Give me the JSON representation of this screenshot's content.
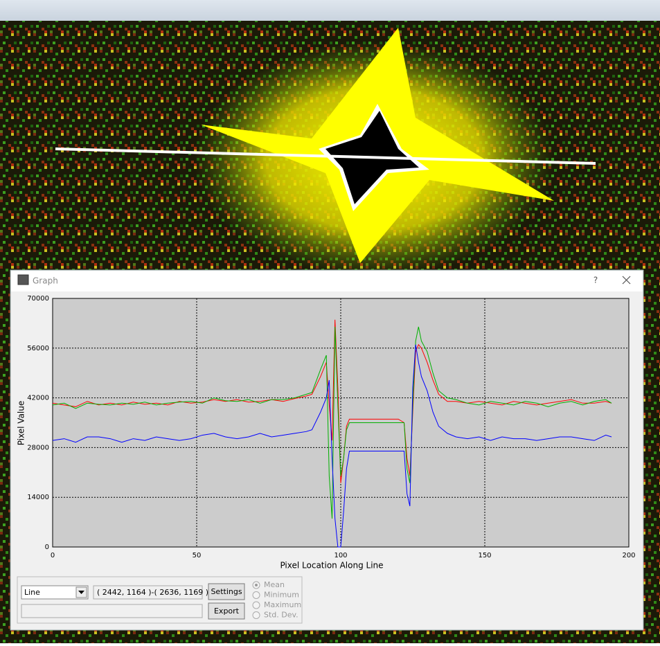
{
  "window": {
    "title": "Graph",
    "help": "?"
  },
  "chart_data": {
    "type": "line",
    "xlabel": "Pixel Location Along Line",
    "ylabel": "Pixel Value",
    "x": [
      0,
      4,
      8,
      12,
      16,
      20,
      24,
      28,
      32,
      36,
      40,
      44,
      48,
      52,
      56,
      60,
      64,
      68,
      72,
      76,
      80,
      84,
      88,
      90,
      93,
      95,
      96,
      97,
      98,
      99,
      100,
      101,
      102,
      103,
      110,
      120,
      122,
      123,
      124,
      125,
      126,
      127,
      128,
      130,
      132,
      134,
      137,
      140,
      144,
      148,
      152,
      156,
      160,
      164,
      168,
      172,
      176,
      180,
      184,
      188,
      192,
      194
    ],
    "series": [
      {
        "color": "#ff0000",
        "values": [
          40500,
          40000,
          39500,
          41000,
          40000,
          40500,
          40000,
          40800,
          40200,
          40500,
          40000,
          41000,
          40500,
          40800,
          41500,
          41000,
          41500,
          40800,
          41000,
          41500,
          41000,
          41800,
          42500,
          43000,
          48000,
          52000,
          40000,
          30000,
          64000,
          45000,
          18000,
          25000,
          34000,
          36000,
          36000,
          36000,
          35000,
          25000,
          20000,
          38000,
          55000,
          57000,
          56000,
          52000,
          47000,
          43000,
          41000,
          41000,
          40500,
          41000,
          40500,
          40000,
          41000,
          40500,
          40000,
          40500,
          41000,
          41500,
          40500,
          40500,
          41000,
          40500
        ]
      },
      {
        "color": "#00b000",
        "values": [
          40000,
          40500,
          39000,
          40500,
          40200,
          40000,
          40500,
          40200,
          40800,
          40000,
          40500,
          40800,
          41000,
          40500,
          42000,
          41200,
          41000,
          41500,
          40500,
          41500,
          41500,
          42000,
          43000,
          43500,
          50000,
          54000,
          20000,
          8000,
          62000,
          40000,
          20000,
          25000,
          33000,
          35000,
          35000,
          35000,
          35000,
          22000,
          18000,
          40000,
          58000,
          62000,
          58000,
          55000,
          49000,
          44000,
          42000,
          41500,
          40500,
          40000,
          41000,
          40500,
          40000,
          41000,
          40500,
          39500,
          40500,
          41000,
          40000,
          41000,
          41500,
          40500
        ]
      },
      {
        "color": "#0000ff",
        "values": [
          30000,
          30500,
          29500,
          31000,
          31000,
          30500,
          29500,
          30500,
          30000,
          31000,
          30500,
          30000,
          30500,
          31500,
          32000,
          31000,
          30500,
          31000,
          32000,
          31000,
          31500,
          32000,
          32500,
          33000,
          38000,
          42000,
          47000,
          25000,
          8000,
          0,
          0,
          10000,
          22000,
          27000,
          27000,
          27000,
          27000,
          15000,
          11500,
          45000,
          57000,
          52000,
          48000,
          44000,
          38000,
          34000,
          32000,
          31000,
          30500,
          31000,
          30000,
          31000,
          30500,
          30500,
          30000,
          30500,
          31000,
          31000,
          30500,
          30000,
          31500,
          31000
        ]
      }
    ],
    "xlim": [
      0,
      200
    ],
    "xticks": [
      0,
      50,
      100,
      150,
      200
    ],
    "ylim": [
      0,
      70000
    ],
    "yticks": [
      0,
      14000,
      28000,
      42000,
      56000,
      70000
    ],
    "grid": true
  },
  "controls": {
    "mode": "Line",
    "coords": "( 2442, 1164 )-( 2636, 1169 )",
    "settings": "Settings",
    "export": "Export",
    "stats": [
      "Mean",
      "Minimum",
      "Maximum",
      "Std. Dev."
    ]
  }
}
